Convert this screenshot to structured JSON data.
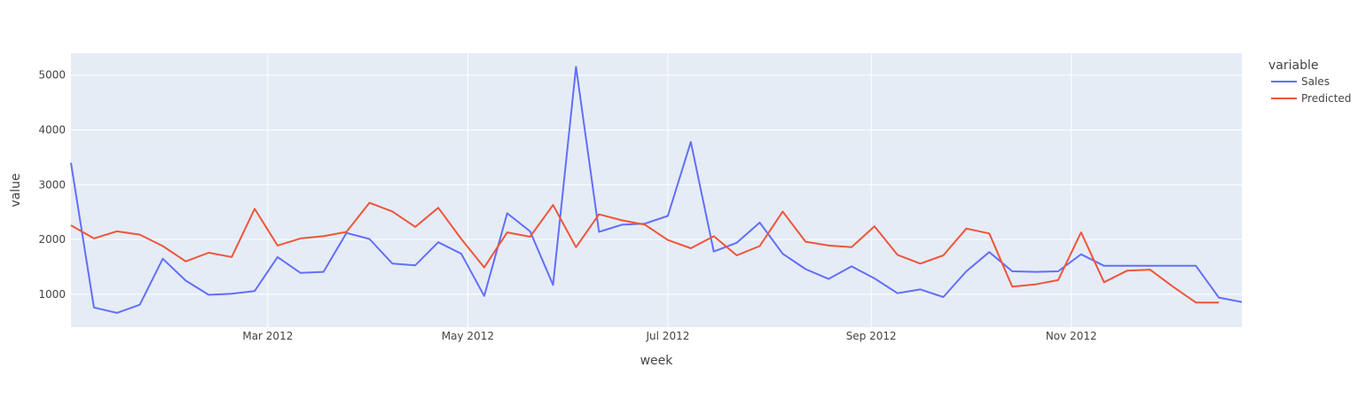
{
  "chart_data": {
    "type": "line",
    "xlabel": "week",
    "ylabel": "value",
    "legend_title": "variable",
    "legend_position": "top-right",
    "grid": true,
    "colors": {
      "plot_bg": "#E5ECF6",
      "grid": "#ffffff",
      "Sales": "#636EFA",
      "Predicted": "#EF553B"
    },
    "x_ticks": [
      {
        "date": "2012-03-01",
        "label": "Mar 2012"
      },
      {
        "date": "2012-05-01",
        "label": "May 2012"
      },
      {
        "date": "2012-07-01",
        "label": "Jul 2012"
      },
      {
        "date": "2012-09-01",
        "label": "Sep 2012"
      },
      {
        "date": "2012-11-01",
        "label": "Nov 2012"
      }
    ],
    "xlim": [
      "2012-01-01",
      "2012-12-23"
    ],
    "y_ticks": [
      1000,
      2000,
      3000,
      4000,
      5000
    ],
    "ylim": [
      400,
      5400
    ],
    "x": [
      "2012-01-01",
      "2012-01-08",
      "2012-01-15",
      "2012-01-22",
      "2012-01-29",
      "2012-02-05",
      "2012-02-12",
      "2012-02-19",
      "2012-02-26",
      "2012-03-04",
      "2012-03-11",
      "2012-03-18",
      "2012-03-25",
      "2012-04-01",
      "2012-04-08",
      "2012-04-15",
      "2012-04-22",
      "2012-04-29",
      "2012-05-06",
      "2012-05-13",
      "2012-05-20",
      "2012-05-27",
      "2012-06-03",
      "2012-06-10",
      "2012-06-17",
      "2012-06-24",
      "2012-07-01",
      "2012-07-08",
      "2012-07-15",
      "2012-07-22",
      "2012-07-29",
      "2012-08-05",
      "2012-08-12",
      "2012-08-19",
      "2012-08-26",
      "2012-09-02",
      "2012-09-09",
      "2012-09-16",
      "2012-09-23",
      "2012-09-30",
      "2012-10-07",
      "2012-10-14",
      "2012-10-21",
      "2012-10-28",
      "2012-11-04",
      "2012-11-11",
      "2012-11-18",
      "2012-11-25",
      "2012-12-02",
      "2012-12-09",
      "2012-12-16",
      "2012-12-23"
    ],
    "series": [
      {
        "name": "Sales",
        "values": [
          3400,
          760,
          660,
          810,
          1650,
          1250,
          990,
          1010,
          1060,
          1680,
          1390,
          1410,
          2120,
          2010,
          1560,
          1530,
          1950,
          1740,
          970,
          2480,
          2150,
          1170,
          5150,
          2140,
          2270,
          2290,
          2430,
          3780,
          1780,
          1940,
          2310,
          1740,
          1460,
          1280,
          1510,
          1290,
          1020,
          1090,
          950,
          1420,
          1770,
          1420,
          1410,
          1420,
          1730,
          1520,
          1520,
          1520,
          1520,
          1520,
          940,
          860
        ],
        "line_end": 51
      },
      {
        "name": "Predicted",
        "values": [
          2260,
          2020,
          2150,
          2090,
          1880,
          1600,
          1760,
          1680,
          2560,
          1890,
          2020,
          2060,
          2140,
          2670,
          2510,
          2230,
          2580,
          2010,
          1490,
          2130,
          2050,
          2630,
          1860,
          2460,
          2350,
          2270,
          1990,
          1840,
          2060,
          1710,
          1880,
          2510,
          1960,
          1890,
          1860,
          2240,
          1720,
          1560,
          1710,
          2200,
          2110,
          1140,
          1180,
          1260,
          2130,
          1220,
          1430,
          1450,
          1140,
          850,
          850,
          850
        ],
        "line_end": 50
      }
    ]
  }
}
